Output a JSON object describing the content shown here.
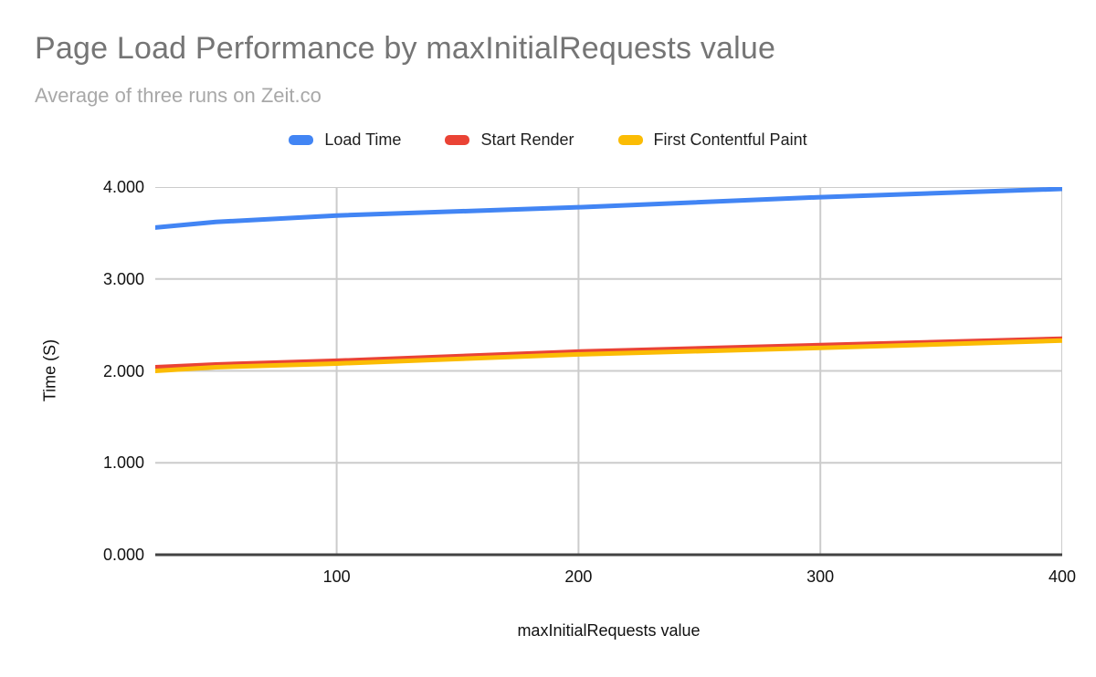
{
  "header": {
    "title": "Page Load Performance by maxInitialRequests value",
    "subtitle": "Average of three runs on Zeit.co"
  },
  "chart_data": {
    "type": "line",
    "title": "Page Load Performance by maxInitialRequests value",
    "subtitle": "Average of three runs on Zeit.co",
    "xlabel": "maxInitialRequests value",
    "ylabel": "Time (S)",
    "xlim": [
      25,
      400
    ],
    "ylim": [
      0,
      4
    ],
    "grid": true,
    "legend_position": "top",
    "x": [
      25,
      50,
      100,
      200,
      300,
      400
    ],
    "series": [
      {
        "name": "Load Time",
        "color": "#4285F4",
        "values": [
          3.56,
          3.62,
          3.69,
          3.78,
          3.89,
          3.98
        ]
      },
      {
        "name": "Start Render",
        "color": "#EA4335",
        "values": [
          2.04,
          2.07,
          2.11,
          2.21,
          2.28,
          2.35
        ]
      },
      {
        "name": "First Contentful Paint",
        "color": "#FBBC04",
        "values": [
          2.0,
          2.04,
          2.08,
          2.18,
          2.25,
          2.33
        ]
      }
    ],
    "xticks": {
      "values": [
        100,
        200,
        300,
        400
      ],
      "labels": [
        "100",
        "200",
        "300",
        "400"
      ]
    },
    "yticks": {
      "values": [
        0,
        1,
        2,
        3,
        4
      ],
      "labels": [
        "0.000",
        "1.000",
        "2.000",
        "3.000",
        "4.000"
      ]
    },
    "colors": {
      "gridline": "#cccccc",
      "baseline": "#424242",
      "title_text": "#757575",
      "subtitle_text": "#a8a8a8",
      "axis_text": "#111111"
    }
  }
}
